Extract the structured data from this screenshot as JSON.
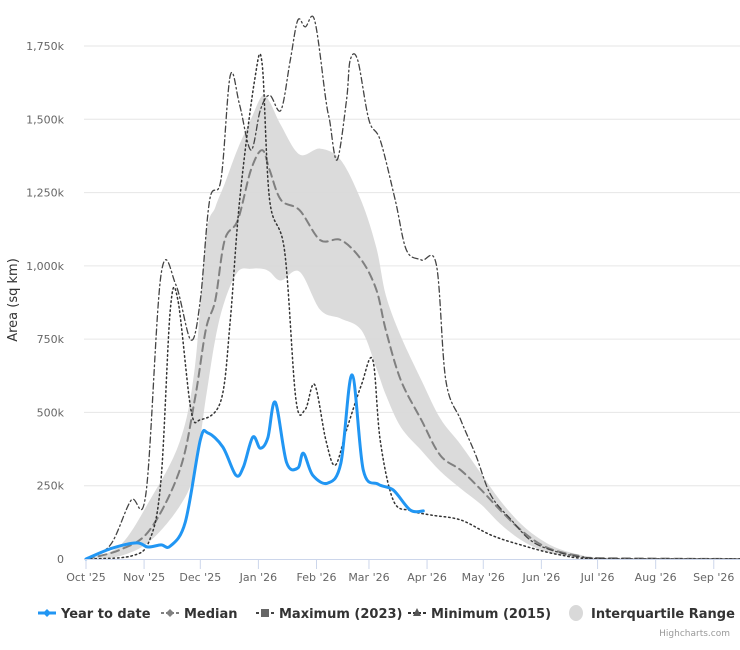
{
  "chart_data": {
    "type": "line",
    "ylabel": "Area (sq km)",
    "ylim": [
      0,
      1750000
    ],
    "yticks": [
      "0",
      "250k",
      "500k",
      "750k",
      "1,000k",
      "1,250k",
      "1,500k",
      "1,750k"
    ],
    "ytick_values": [
      0,
      250000,
      500000,
      750000,
      1000000,
      1250000,
      1500000,
      1750000
    ],
    "xlim": [
      "2025-10-01",
      "2026-09-15"
    ],
    "xticks": [
      "Oct '25",
      "Nov '25",
      "Dec '25",
      "Jan '26",
      "Feb '26",
      "Mar '26",
      "Apr '26",
      "May '26",
      "Jun '26",
      "Jul '26",
      "Aug '26",
      "Sep '26"
    ],
    "xtick_dates": [
      "2025-10-01",
      "2025-11-01",
      "2025-12-01",
      "2026-01-01",
      "2026-02-01",
      "2026-03-01",
      "2026-04-01",
      "2026-05-01",
      "2026-06-01",
      "2026-07-01",
      "2026-08-01",
      "2026-09-01"
    ],
    "grid": true,
    "legend_placement": "bottom",
    "credit": "Highcharts.com",
    "colors": {
      "ytd": "#2196f3",
      "median": "#808080",
      "max": "#444444",
      "min": "#333333",
      "iqr": "#d9d9d9"
    },
    "series": [
      {
        "name": "Year to date",
        "style": "solid",
        "data": [
          [
            "2025-10-01",
            0
          ],
          [
            "2025-10-15",
            37000
          ],
          [
            "2025-10-28",
            55000
          ],
          [
            "2025-11-03",
            41000
          ],
          [
            "2025-11-10",
            48000
          ],
          [
            "2025-11-15",
            44000
          ],
          [
            "2025-11-23",
            126000
          ],
          [
            "2025-12-01",
            406000
          ],
          [
            "2025-12-05",
            430000
          ],
          [
            "2025-12-13",
            382000
          ],
          [
            "2025-12-20",
            286000
          ],
          [
            "2025-12-24",
            314000
          ],
          [
            "2025-12-29",
            416000
          ],
          [
            "2026-01-02",
            378000
          ],
          [
            "2026-01-06",
            413000
          ],
          [
            "2026-01-10",
            535000
          ],
          [
            "2026-01-16",
            330000
          ],
          [
            "2026-01-22",
            310000
          ],
          [
            "2026-01-25",
            361000
          ],
          [
            "2026-01-30",
            286000
          ],
          [
            "2026-02-07",
            259000
          ],
          [
            "2026-02-14",
            327000
          ],
          [
            "2026-02-20",
            628000
          ],
          [
            "2026-02-26",
            303000
          ],
          [
            "2026-03-06",
            255000
          ],
          [
            "2026-03-14",
            235000
          ],
          [
            "2026-03-23",
            167000
          ],
          [
            "2026-03-30",
            164000
          ]
        ]
      },
      {
        "name": "Median",
        "style": "dashed",
        "data": [
          [
            "2025-10-01",
            0
          ],
          [
            "2025-10-19",
            31000
          ],
          [
            "2025-11-04",
            99000
          ],
          [
            "2025-11-20",
            303000
          ],
          [
            "2025-11-28",
            542000
          ],
          [
            "2025-12-04",
            784000
          ],
          [
            "2025-12-09",
            883000
          ],
          [
            "2025-12-14",
            1088000
          ],
          [
            "2025-12-21",
            1156000
          ],
          [
            "2025-12-28",
            1327000
          ],
          [
            "2026-01-03",
            1395000
          ],
          [
            "2026-01-07",
            1327000
          ],
          [
            "2026-01-13",
            1225000
          ],
          [
            "2026-01-23",
            1190000
          ],
          [
            "2026-02-03",
            1088000
          ],
          [
            "2026-02-14",
            1088000
          ],
          [
            "2026-02-25",
            1020000
          ],
          [
            "2026-03-05",
            917000
          ],
          [
            "2026-03-10",
            781000
          ],
          [
            "2026-03-18",
            610000
          ],
          [
            "2026-03-29",
            474000
          ],
          [
            "2026-04-08",
            354000
          ],
          [
            "2026-04-19",
            303000
          ],
          [
            "2026-04-30",
            235000
          ],
          [
            "2026-05-10",
            167000
          ],
          [
            "2026-05-21",
            99000
          ],
          [
            "2026-06-01",
            48000
          ],
          [
            "2026-06-11",
            24000
          ],
          [
            "2026-06-22",
            10000
          ],
          [
            "2026-07-03",
            3000
          ],
          [
            "2026-09-15",
            0
          ]
        ]
      },
      {
        "name": "Maximum (2023)",
        "style": "dashdot",
        "data": [
          [
            "2025-10-01",
            0
          ],
          [
            "2025-10-14",
            48000
          ],
          [
            "2025-10-25",
            200000
          ],
          [
            "2025-11-02",
            225000
          ],
          [
            "2025-11-10",
            969000
          ],
          [
            "2025-11-18",
            935000
          ],
          [
            "2025-11-26",
            747000
          ],
          [
            "2025-12-01",
            883000
          ],
          [
            "2025-12-06",
            1225000
          ],
          [
            "2025-12-12",
            1293000
          ],
          [
            "2025-12-17",
            1650000
          ],
          [
            "2025-12-22",
            1548000
          ],
          [
            "2025-12-28",
            1395000
          ],
          [
            "2026-01-02",
            1531000
          ],
          [
            "2026-01-07",
            1582000
          ],
          [
            "2026-01-13",
            1531000
          ],
          [
            "2026-01-18",
            1702000
          ],
          [
            "2026-01-22",
            1838000
          ],
          [
            "2026-01-26",
            1815000
          ],
          [
            "2026-01-31",
            1838000
          ],
          [
            "2026-02-06",
            1565000
          ],
          [
            "2026-02-08",
            1497000
          ],
          [
            "2026-02-12",
            1361000
          ],
          [
            "2026-02-17",
            1565000
          ],
          [
            "2026-02-19",
            1702000
          ],
          [
            "2026-02-23",
            1702000
          ],
          [
            "2026-03-01",
            1497000
          ],
          [
            "2026-03-07",
            1429000
          ],
          [
            "2026-03-15",
            1225000
          ],
          [
            "2026-03-21",
            1054000
          ],
          [
            "2026-03-29",
            1020000
          ],
          [
            "2026-04-06",
            1003000
          ],
          [
            "2026-04-11",
            610000
          ],
          [
            "2026-04-19",
            474000
          ],
          [
            "2026-04-27",
            354000
          ],
          [
            "2026-05-05",
            218000
          ],
          [
            "2026-05-16",
            133000
          ],
          [
            "2026-05-26",
            65000
          ],
          [
            "2026-06-06",
            31000
          ],
          [
            "2026-06-22",
            7000
          ],
          [
            "2026-07-14",
            0
          ],
          [
            "2026-09-15",
            0
          ]
        ]
      },
      {
        "name": "Minimum (2015)",
        "style": "dotted",
        "data": [
          [
            "2025-10-01",
            0
          ],
          [
            "2025-10-25",
            10000
          ],
          [
            "2025-11-04",
            65000
          ],
          [
            "2025-11-10",
            270000
          ],
          [
            "2025-11-15",
            850000
          ],
          [
            "2025-11-19",
            885000
          ],
          [
            "2025-11-26",
            510000
          ],
          [
            "2025-12-01",
            475000
          ],
          [
            "2025-12-12",
            540000
          ],
          [
            "2025-12-17",
            815000
          ],
          [
            "2025-12-22",
            1225000
          ],
          [
            "2025-12-30",
            1635000
          ],
          [
            "2026-01-03",
            1690000
          ],
          [
            "2026-01-07",
            1225000
          ],
          [
            "2026-01-15",
            1050000
          ],
          [
            "2026-01-21",
            545000
          ],
          [
            "2026-01-26",
            510000
          ],
          [
            "2026-01-31",
            595000
          ],
          [
            "2026-02-06",
            405000
          ],
          [
            "2026-02-11",
            320000
          ],
          [
            "2026-02-17",
            440000
          ],
          [
            "2026-02-25",
            595000
          ],
          [
            "2026-03-03",
            680000
          ],
          [
            "2026-03-07",
            405000
          ],
          [
            "2026-03-14",
            200000
          ],
          [
            "2026-03-23",
            165000
          ],
          [
            "2026-04-03",
            150000
          ],
          [
            "2026-04-19",
            133000
          ],
          [
            "2026-05-05",
            82000
          ],
          [
            "2026-05-21",
            48000
          ],
          [
            "2026-06-11",
            14000
          ],
          [
            "2026-07-03",
            0
          ],
          [
            "2026-09-15",
            0
          ]
        ]
      }
    ],
    "range": {
      "name": "Interquartile Range",
      "data": [
        [
          "2025-10-01",
          0,
          0
        ],
        [
          "2025-10-19",
          10000,
          45000
        ],
        [
          "2025-11-04",
          60000,
          200000
        ],
        [
          "2025-11-20",
          180000,
          400000
        ],
        [
          "2025-11-28",
          300000,
          650000
        ],
        [
          "2025-12-04",
          550000,
          1100000
        ],
        [
          "2025-12-09",
          750000,
          1200000
        ],
        [
          "2025-12-14",
          880000,
          1280000
        ],
        [
          "2025-12-21",
          980000,
          1400000
        ],
        [
          "2025-12-28",
          990000,
          1500000
        ],
        [
          "2026-01-03",
          990000,
          1580000
        ],
        [
          "2026-01-07",
          980000,
          1560000
        ],
        [
          "2026-01-13",
          950000,
          1480000
        ],
        [
          "2026-01-23",
          980000,
          1380000
        ],
        [
          "2026-02-03",
          850000,
          1400000
        ],
        [
          "2026-02-14",
          820000,
          1360000
        ],
        [
          "2026-02-25",
          780000,
          1220000
        ],
        [
          "2026-03-05",
          650000,
          1060000
        ],
        [
          "2026-03-10",
          560000,
          900000
        ],
        [
          "2026-03-18",
          450000,
          760000
        ],
        [
          "2026-03-29",
          370000,
          610000
        ],
        [
          "2026-04-08",
          300000,
          480000
        ],
        [
          "2026-04-19",
          240000,
          390000
        ],
        [
          "2026-04-30",
          185000,
          290000
        ],
        [
          "2026-05-10",
          120000,
          200000
        ],
        [
          "2026-05-21",
          65000,
          120000
        ],
        [
          "2026-06-01",
          30000,
          65000
        ],
        [
          "2026-06-11",
          14000,
          33000
        ],
        [
          "2026-06-22",
          5000,
          14000
        ],
        [
          "2026-07-03",
          1000,
          5000
        ],
        [
          "2026-09-15",
          0,
          0
        ]
      ]
    }
  }
}
